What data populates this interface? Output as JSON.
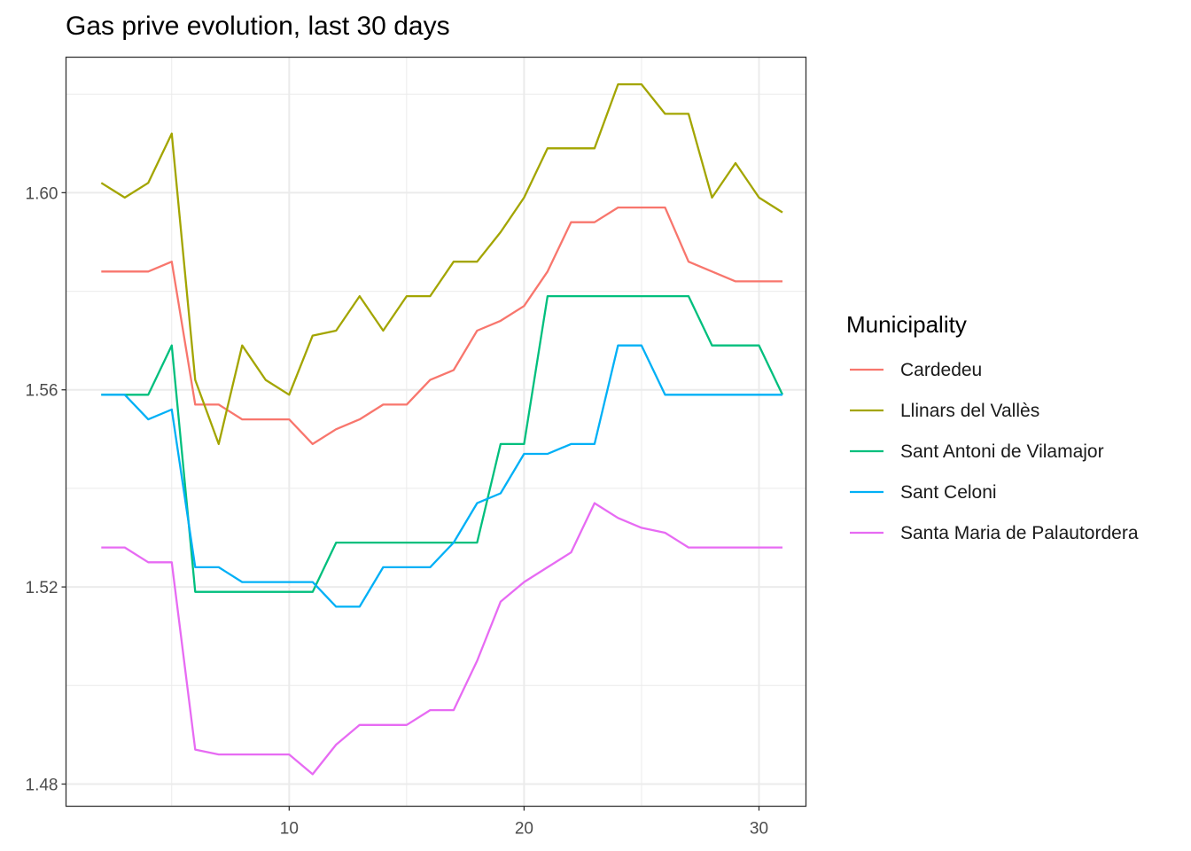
{
  "chart_data": {
    "type": "line",
    "title": "Gas prive evolution, last 30 days",
    "xlabel": "",
    "ylabel": "",
    "xlim": [
      0.5,
      32
    ],
    "ylim": [
      1.4755,
      1.6275
    ],
    "x_ticks": [
      10,
      20,
      30
    ],
    "x_tick_labels": [
      "10",
      "20",
      "30"
    ],
    "y_ticks": [
      1.48,
      1.52,
      1.56,
      1.6
    ],
    "y_tick_labels": [
      "1.48",
      "1.52",
      "1.56",
      "1.60"
    ],
    "grid": true,
    "legend": {
      "title": "Municipality",
      "position": "right"
    },
    "x": [
      2,
      3,
      4,
      5,
      6,
      7,
      8,
      9,
      10,
      11,
      12,
      13,
      14,
      15,
      16,
      17,
      18,
      19,
      20,
      21,
      22,
      23,
      24,
      25,
      26,
      27,
      28,
      29,
      30,
      31
    ],
    "series": [
      {
        "name": "Cardedeu",
        "color": "#F8766D",
        "values": [
          1.584,
          1.584,
          1.584,
          1.586,
          1.557,
          1.557,
          1.554,
          1.554,
          1.554,
          1.549,
          1.552,
          1.554,
          1.557,
          1.557,
          1.562,
          1.564,
          1.572,
          1.574,
          1.577,
          1.584,
          1.594,
          1.594,
          1.597,
          1.597,
          1.597,
          1.586,
          1.584,
          1.582,
          1.582,
          1.582
        ]
      },
      {
        "name": "Llinars del Vallès",
        "color": "#A3A500",
        "values": [
          1.602,
          1.599,
          1.602,
          1.612,
          1.562,
          1.549,
          1.569,
          1.562,
          1.559,
          1.571,
          1.572,
          1.579,
          1.572,
          1.579,
          1.579,
          1.586,
          1.586,
          1.592,
          1.599,
          1.609,
          1.609,
          1.609,
          1.622,
          1.622,
          1.616,
          1.616,
          1.599,
          1.606,
          1.599,
          1.596
        ]
      },
      {
        "name": "Sant Antoni de Vilamajor",
        "color": "#00BF7D",
        "values": [
          1.559,
          1.559,
          1.559,
          1.569,
          1.519,
          1.519,
          1.519,
          1.519,
          1.519,
          1.519,
          1.529,
          1.529,
          1.529,
          1.529,
          1.529,
          1.529,
          1.529,
          1.549,
          1.549,
          1.579,
          1.579,
          1.579,
          1.579,
          1.579,
          1.579,
          1.579,
          1.569,
          1.569,
          1.569,
          1.559
        ]
      },
      {
        "name": "Sant Celoni",
        "color": "#00B0F6",
        "values": [
          1.559,
          1.559,
          1.554,
          1.556,
          1.524,
          1.524,
          1.521,
          1.521,
          1.521,
          1.521,
          1.516,
          1.516,
          1.524,
          1.524,
          1.524,
          1.529,
          1.537,
          1.539,
          1.547,
          1.547,
          1.549,
          1.549,
          1.569,
          1.569,
          1.559,
          1.559,
          1.559,
          1.559,
          1.559,
          1.559
        ]
      },
      {
        "name": "Santa Maria de Palautordera",
        "color": "#E76BF3",
        "values": [
          1.528,
          1.528,
          1.525,
          1.525,
          1.487,
          1.486,
          1.486,
          1.486,
          1.486,
          1.482,
          1.488,
          1.492,
          1.492,
          1.492,
          1.495,
          1.495,
          1.505,
          1.517,
          1.521,
          1.524,
          1.527,
          1.537,
          1.534,
          1.532,
          1.531,
          1.528,
          1.528,
          1.528,
          1.528,
          1.528
        ]
      }
    ]
  }
}
